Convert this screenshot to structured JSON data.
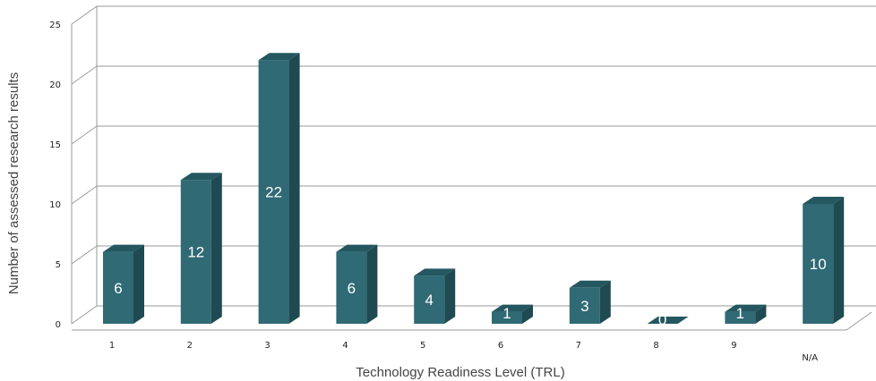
{
  "chart_data": {
    "type": "bar",
    "categories": [
      "1",
      "2",
      "3",
      "4",
      "5",
      "6",
      "7",
      "8",
      "9",
      "N/A"
    ],
    "values": [
      6,
      12,
      22,
      6,
      4,
      1,
      3,
      0,
      1,
      10
    ],
    "data_labels": [
      "6",
      "12",
      "22",
      "6",
      "4",
      "1",
      "3",
      "0",
      "1",
      "10"
    ],
    "title": "",
    "xlabel": "Technology Readiness Level (TRL)",
    "ylabel": "Number of assessed research results",
    "ylim": [
      0,
      25
    ],
    "yticks": [
      "0",
      "5",
      "10",
      "15",
      "20",
      "25"
    ],
    "grid": true,
    "legend": "none",
    "style": "3d-column",
    "colors": {
      "front": "#2f6a75",
      "side": "#1f4a52",
      "top": "#245760",
      "grid": "#999999"
    }
  }
}
